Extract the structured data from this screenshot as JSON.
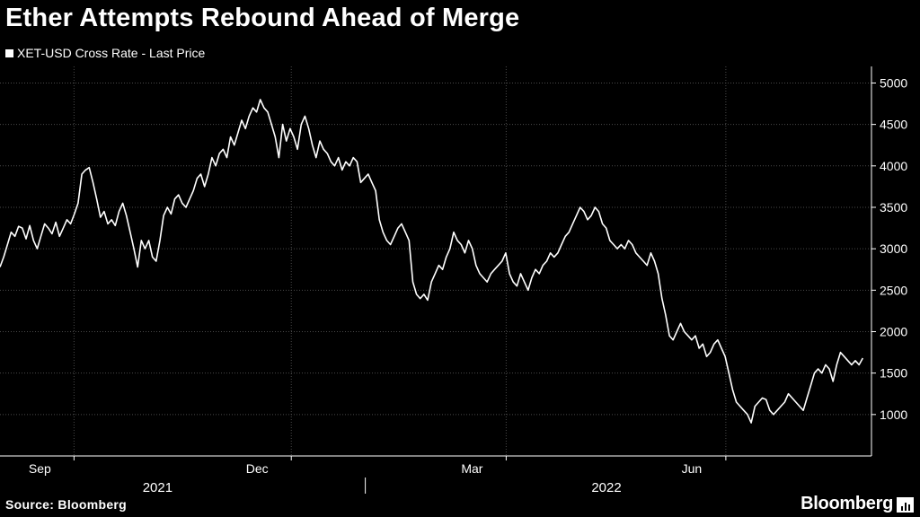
{
  "title": "Ether Attempts Rebound Ahead of Merge",
  "legend": {
    "label": "XET-USD Cross Rate - Last Price"
  },
  "source": "Source: Bloomberg",
  "brand": "Bloomberg",
  "colors": {
    "background": "#000000",
    "line": "#ffffff",
    "grid": "#4a4a4a"
  },
  "chart_data": {
    "type": "line",
    "title": "Ether Attempts Rebound Ahead of Merge",
    "series_name": "XET-USD Cross Rate - Last Price",
    "y_axis_side": "right",
    "ylim": [
      500,
      5200
    ],
    "y_ticks": [
      1000,
      1500,
      2000,
      2500,
      3000,
      3500,
      4000,
      4500,
      5000
    ],
    "month_ticks": [
      {
        "label": "Sep",
        "day": 31
      },
      {
        "label": "Dec",
        "day": 122
      },
      {
        "label": "Mar",
        "day": 212
      },
      {
        "label": "Jun",
        "day": 304
      }
    ],
    "year_labels": [
      {
        "label": "2021",
        "day": 66
      },
      {
        "label": "2022",
        "day": 254
      }
    ],
    "year_divider_day": 153,
    "xlim": [
      0,
      365
    ],
    "x_unit": "days since 2021-08-01",
    "values": [
      2780,
      2900,
      3050,
      3200,
      3150,
      3270,
      3250,
      3120,
      3280,
      3100,
      3000,
      3150,
      3300,
      3250,
      3180,
      3320,
      3150,
      3250,
      3350,
      3300,
      3420,
      3550,
      3900,
      3950,
      3980,
      3800,
      3600,
      3380,
      3450,
      3300,
      3350,
      3280,
      3450,
      3550,
      3400,
      3200,
      3000,
      2780,
      3100,
      3000,
      3100,
      2900,
      2850,
      3100,
      3400,
      3500,
      3420,
      3600,
      3650,
      3550,
      3500,
      3600,
      3700,
      3850,
      3900,
      3750,
      3900,
      4100,
      4000,
      4150,
      4200,
      4100,
      4350,
      4250,
      4400,
      4550,
      4450,
      4600,
      4700,
      4650,
      4800,
      4700,
      4650,
      4500,
      4350,
      4100,
      4500,
      4300,
      4450,
      4350,
      4200,
      4500,
      4600,
      4450,
      4250,
      4100,
      4300,
      4200,
      4150,
      4050,
      4000,
      4100,
      3950,
      4050,
      4000,
      4100,
      4050,
      3800,
      3850,
      3900,
      3800,
      3700,
      3350,
      3200,
      3100,
      3050,
      3150,
      3250,
      3300,
      3200,
      3100,
      2600,
      2450,
      2400,
      2450,
      2380,
      2600,
      2700,
      2800,
      2750,
      2900,
      3000,
      3200,
      3100,
      3050,
      2950,
      3100,
      3000,
      2800,
      2700,
      2650,
      2600,
      2700,
      2750,
      2800,
      2850,
      2950,
      2700,
      2600,
      2550,
      2700,
      2600,
      2500,
      2650,
      2750,
      2700,
      2800,
      2850,
      2950,
      2900,
      2950,
      3050,
      3150,
      3200,
      3300,
      3400,
      3500,
      3450,
      3350,
      3400,
      3500,
      3450,
      3300,
      3250,
      3100,
      3050,
      3000,
      3050,
      3000,
      3100,
      3050,
      2950,
      2900,
      2850,
      2800,
      2950,
      2850,
      2700,
      2400,
      2200,
      1950,
      1900,
      2000,
      2100,
      2000,
      1950,
      1900,
      1950,
      1800,
      1850,
      1700,
      1750,
      1850,
      1900,
      1800,
      1700,
      1500,
      1300,
      1150,
      1100,
      1050,
      1000,
      900,
      1100,
      1150,
      1200,
      1180,
      1050,
      1000,
      1050,
      1100,
      1150,
      1250,
      1200,
      1150,
      1100,
      1050,
      1200,
      1350,
      1500,
      1550,
      1500,
      1600,
      1550,
      1400,
      1600,
      1750,
      1700,
      1650,
      1600,
      1650,
      1600,
      1680
    ]
  }
}
